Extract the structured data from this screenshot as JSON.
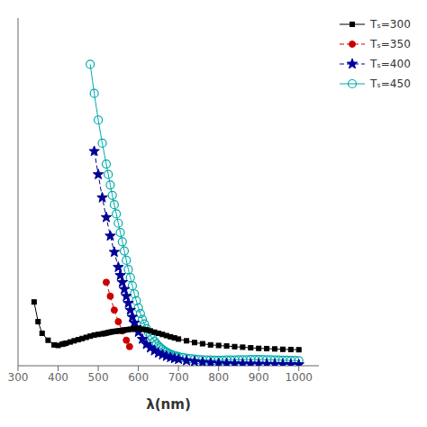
{
  "chart_data": {
    "type": "line",
    "xlabel": "λ(nm)",
    "xlim": [
      300,
      1050
    ],
    "xticks": [
      300,
      400,
      500,
      600,
      700,
      800,
      900,
      1000
    ],
    "ylim": [
      0,
      3
    ],
    "tick_labels": "x",
    "grid": false,
    "legend": "right",
    "series": [
      {
        "name": "Tₛ=300",
        "color": "#000000",
        "marker": "square",
        "line_style": "solid",
        "x": [
          340,
          350,
          360,
          375,
          390,
          400,
          410,
          415,
          420,
          430,
          440,
          450,
          460,
          470,
          480,
          490,
          500,
          510,
          515,
          520,
          525,
          530,
          535,
          540,
          545,
          550,
          555,
          560,
          565,
          570,
          575,
          580,
          590,
          600,
          610,
          620,
          630,
          640,
          650,
          660,
          670,
          680,
          690,
          700,
          720,
          740,
          760,
          780,
          800,
          820,
          840,
          860,
          880,
          900,
          920,
          940,
          960,
          980,
          1000
        ],
        "values": [
          0.55,
          0.38,
          0.28,
          0.22,
          0.18,
          0.175,
          0.185,
          0.19,
          0.195,
          0.205,
          0.215,
          0.225,
          0.235,
          0.245,
          0.255,
          0.265,
          0.27,
          0.275,
          0.278,
          0.282,
          0.286,
          0.29,
          0.293,
          0.296,
          0.298,
          0.3,
          0.302,
          0.305,
          0.307,
          0.31,
          0.312,
          0.315,
          0.318,
          0.32,
          0.315,
          0.31,
          0.3,
          0.29,
          0.28,
          0.27,
          0.26,
          0.25,
          0.24,
          0.23,
          0.215,
          0.2,
          0.19,
          0.18,
          0.175,
          0.17,
          0.165,
          0.16,
          0.155,
          0.15,
          0.148,
          0.145,
          0.142,
          0.14,
          0.138
        ]
      },
      {
        "name": "Tₛ=350",
        "color": "#cc0000",
        "marker": "circle",
        "line_style": "dashed",
        "x": [
          520,
          530,
          540,
          550,
          560,
          570,
          578
        ],
        "values": [
          0.72,
          0.6,
          0.48,
          0.38,
          0.3,
          0.22,
          0.165
        ]
      },
      {
        "name": "Tₛ=400",
        "color": "#000099",
        "marker": "star",
        "line_style": "dashed",
        "x": [
          490,
          500,
          510,
          520,
          530,
          540,
          550,
          555,
          560,
          565,
          570,
          575,
          580,
          585,
          590,
          595,
          600,
          610,
          620,
          630,
          640,
          650,
          660,
          670,
          680,
          690,
          700,
          720,
          740,
          760,
          780,
          800,
          820,
          840,
          860,
          880,
          900,
          920,
          940,
          960,
          980,
          1000
        ],
        "values": [
          1.85,
          1.65,
          1.45,
          1.28,
          1.12,
          0.98,
          0.85,
          0.78,
          0.72,
          0.66,
          0.6,
          0.54,
          0.48,
          0.42,
          0.37,
          0.33,
          0.29,
          0.23,
          0.185,
          0.155,
          0.13,
          0.11,
          0.095,
          0.082,
          0.072,
          0.063,
          0.056,
          0.044,
          0.036,
          0.03,
          0.025,
          0.022,
          0.02,
          0.018,
          0.017,
          0.016,
          0.015,
          0.014,
          0.013,
          0.012,
          0.011,
          0.01
        ]
      },
      {
        "name": "Tₛ=450",
        "color": "#00aaaa",
        "marker": "open_circle",
        "line_style": "solid",
        "x": [
          480,
          490,
          500,
          510,
          520,
          525,
          530,
          535,
          540,
          545,
          550,
          555,
          560,
          565,
          570,
          575,
          580,
          585,
          590,
          595,
          600,
          605,
          610,
          615,
          620,
          625,
          630,
          635,
          640,
          645,
          650,
          655,
          660,
          665,
          670,
          675,
          680,
          685,
          690,
          695,
          700,
          710,
          720,
          730,
          740,
          750,
          760,
          770,
          780,
          790,
          800,
          810,
          820,
          830,
          840,
          850,
          860,
          870,
          880,
          890,
          900,
          910,
          920,
          930,
          940,
          950,
          960,
          970,
          980,
          990,
          1000
        ],
        "values": [
          2.6,
          2.35,
          2.12,
          1.92,
          1.74,
          1.65,
          1.56,
          1.47,
          1.39,
          1.31,
          1.23,
          1.15,
          1.07,
          0.99,
          0.91,
          0.83,
          0.76,
          0.69,
          0.62,
          0.56,
          0.5,
          0.45,
          0.4,
          0.36,
          0.32,
          0.29,
          0.26,
          0.235,
          0.21,
          0.19,
          0.17,
          0.155,
          0.14,
          0.128,
          0.117,
          0.108,
          0.1,
          0.093,
          0.087,
          0.082,
          0.078,
          0.071,
          0.065,
          0.061,
          0.057,
          0.054,
          0.052,
          0.05,
          0.049,
          0.048,
          0.048,
          0.048,
          0.049,
          0.049,
          0.05,
          0.051,
          0.052,
          0.052,
          0.053,
          0.053,
          0.053,
          0.053,
          0.052,
          0.051,
          0.05,
          0.049,
          0.048,
          0.047,
          0.046,
          0.045,
          0.044
        ]
      }
    ]
  }
}
